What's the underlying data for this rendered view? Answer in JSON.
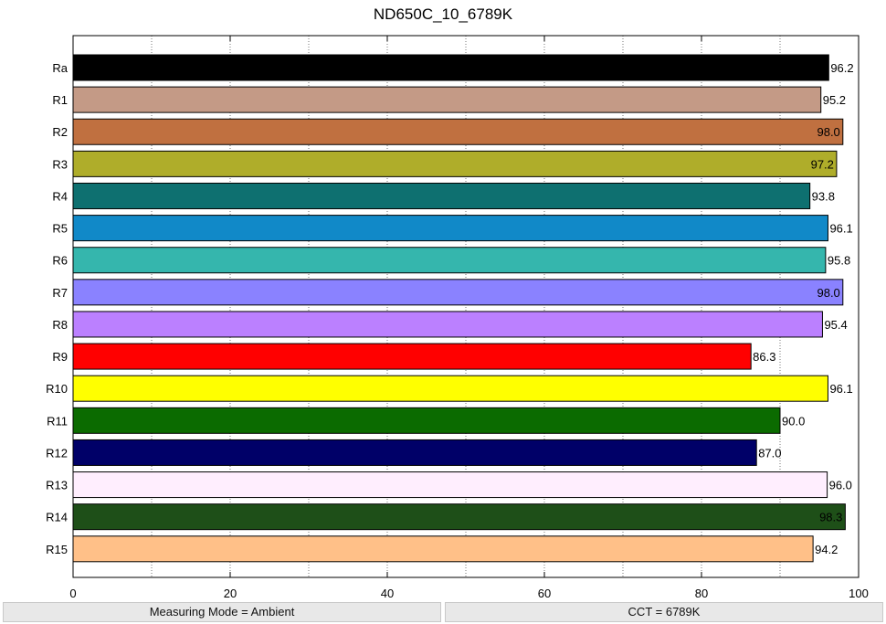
{
  "chart_data": {
    "type": "bar",
    "orientation": "horizontal",
    "title": "ND650C_10_6789K",
    "xlabel": "",
    "ylabel": "",
    "xlim": [
      0,
      100
    ],
    "x_ticks": [
      "0",
      "20",
      "40",
      "60",
      "80",
      "100"
    ],
    "grid": "vertical dotted every 10",
    "categories": [
      "Ra",
      "R1",
      "R2",
      "R3",
      "R4",
      "R5",
      "R6",
      "R7",
      "R8",
      "R9",
      "R10",
      "R11",
      "R12",
      "R13",
      "R14",
      "R15"
    ],
    "values": [
      96.2,
      95.2,
      98.0,
      97.2,
      93.8,
      96.1,
      95.8,
      98.0,
      95.4,
      86.3,
      96.1,
      90.0,
      87.0,
      96.0,
      98.3,
      94.2
    ],
    "value_labels": [
      "96.2",
      "95.2",
      "98.0",
      "97.2",
      "93.8",
      "96.1",
      "95.8",
      "98.0",
      "95.4",
      "86.3",
      "96.1",
      "90.0",
      "87.0",
      "96.0",
      "98.3",
      "94.2"
    ],
    "colors": [
      "#000000",
      "#c49a86",
      "#c07040",
      "#afad2a",
      "#0e7070",
      "#1189c8",
      "#35b6ad",
      "#8a82ff",
      "#bb80ff",
      "#ff0000",
      "#ffff00",
      "#0b6b00",
      "#000068",
      "#ffeefe",
      "#1e4f18",
      "#ffc088"
    ]
  },
  "status": {
    "measuring_mode": "Measuring Mode = Ambient",
    "cct": "CCT = 6789K"
  }
}
